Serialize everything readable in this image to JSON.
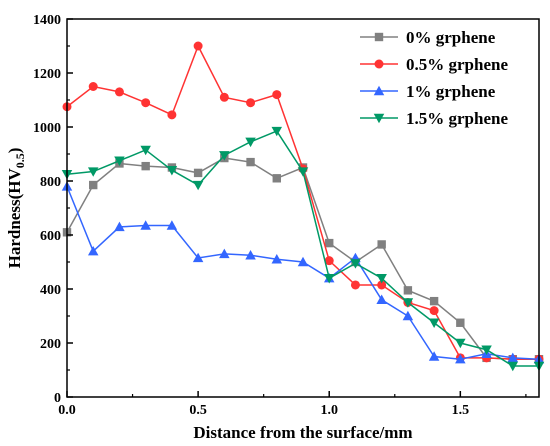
{
  "chart_data": {
    "type": "line",
    "title": "",
    "xlabel": "Distance from the surface/mm",
    "ylabel_main": "Hardness(HV",
    "ylabel_sub": "0.5",
    "ylabel_close": ")",
    "xlim": [
      0,
      1.8
    ],
    "ylim": [
      0,
      1400
    ],
    "xticks": [
      0.0,
      0.5,
      1.0,
      1.5
    ],
    "xtick_labels": [
      "0.0",
      "0.5",
      "1.0",
      "1.5"
    ],
    "yticks": [
      0,
      200,
      400,
      600,
      800,
      1000,
      1200,
      1400
    ],
    "ytick_labels": [
      "0",
      "200",
      "400",
      "600",
      "800",
      "1000",
      "1200",
      "1400"
    ],
    "legend_position": "top-right",
    "grid": false,
    "x": [
      0.0,
      0.1,
      0.2,
      0.3,
      0.4,
      0.5,
      0.6,
      0.7,
      0.8,
      0.9,
      1.0,
      1.1,
      1.2,
      1.3,
      1.4,
      1.5,
      1.6,
      1.7,
      1.8
    ],
    "series": [
      {
        "name": "0% grphene",
        "color": "#808080",
        "marker": "square",
        "values": [
          610,
          785,
          865,
          855,
          850,
          830,
          885,
          870,
          810,
          850,
          570,
          500,
          565,
          395,
          355,
          275,
          145,
          140,
          140
        ]
      },
      {
        "name": "0.5% grphene",
        "color": "#ff3333",
        "marker": "circle",
        "values": [
          1075,
          1150,
          1130,
          1090,
          1045,
          1300,
          1110,
          1090,
          1120,
          845,
          505,
          415,
          415,
          350,
          320,
          145,
          145,
          140,
          140
        ]
      },
      {
        "name": "1% grphene",
        "color": "#3366ff",
        "marker": "triangle-up",
        "values": [
          780,
          540,
          630,
          635,
          635,
          515,
          530,
          525,
          510,
          500,
          440,
          515,
          360,
          300,
          150,
          140,
          160,
          145,
          140
        ]
      },
      {
        "name": "1.5% grphene",
        "color": "#009966",
        "marker": "triangle-down",
        "values": [
          825,
          835,
          875,
          915,
          840,
          785,
          895,
          945,
          985,
          835,
          440,
          495,
          440,
          350,
          275,
          200,
          175,
          115,
          115
        ]
      }
    ]
  }
}
